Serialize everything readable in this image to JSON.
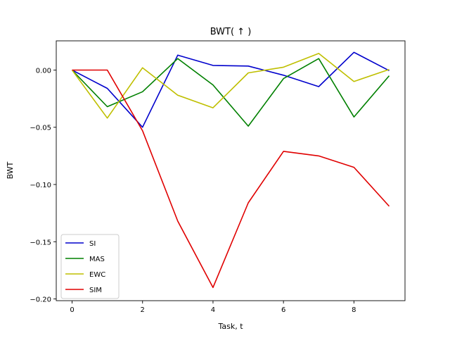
{
  "chart_data": {
    "type": "line",
    "title": "BWT( ↑ )",
    "xlabel": "Task, t",
    "ylabel": "BWT",
    "x": [
      0,
      1,
      2,
      3,
      4,
      5,
      6,
      7,
      8,
      9
    ],
    "xlim": [
      -0.45,
      9.45
    ],
    "ylim": [
      -0.2015,
      0.0255
    ],
    "xticks": [
      "0",
      "2",
      "4",
      "6",
      "8"
    ],
    "yticks": [
      "0.00",
      "−0.05",
      "−0.10",
      "−0.15",
      "−0.20"
    ],
    "xtick_values": [
      0,
      2,
      4,
      6,
      8
    ],
    "ytick_values": [
      0.0,
      -0.05,
      -0.1,
      -0.15,
      -0.2
    ],
    "grid": false,
    "legend_position": "lower-left",
    "series": [
      {
        "name": "SI",
        "color": "#0000cc",
        "values": [
          0.0,
          -0.016,
          -0.05,
          0.013,
          0.004,
          0.0035,
          -0.0045,
          -0.0145,
          0.0155,
          -0.0005
        ]
      },
      {
        "name": "MAS",
        "color": "#008000",
        "values": [
          0.0,
          -0.032,
          -0.019,
          0.01,
          -0.013,
          -0.049,
          -0.0075,
          0.01,
          -0.041,
          -0.005
        ]
      },
      {
        "name": "EWC",
        "color": "#bfbf00",
        "values": [
          0.0,
          -0.042,
          0.002,
          -0.022,
          -0.033,
          -0.0025,
          0.0025,
          0.0145,
          -0.01,
          0.0005
        ]
      },
      {
        "name": "SIM",
        "color": "#e00000",
        "values": [
          0.0,
          0.0,
          -0.053,
          -0.132,
          -0.19,
          -0.116,
          -0.071,
          -0.075,
          -0.085,
          -0.119
        ]
      }
    ]
  }
}
